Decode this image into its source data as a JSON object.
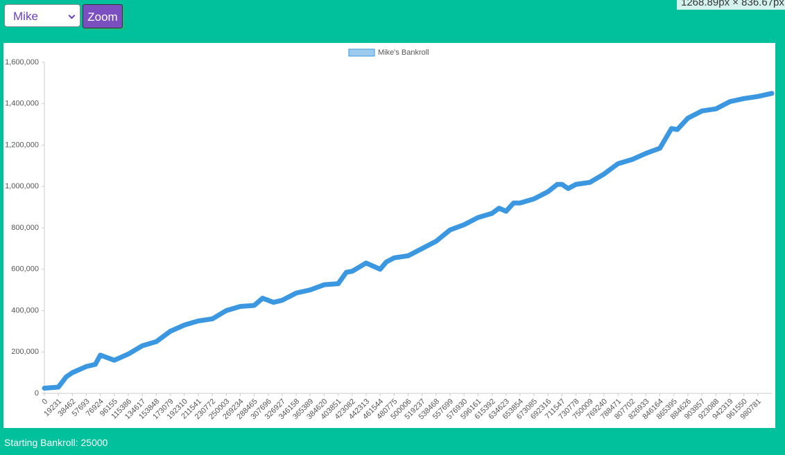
{
  "controls": {
    "player": "Mike",
    "zoom": "Zoom"
  },
  "badge": "1268.89px × 836.67px",
  "footer": "Starting Bankroll: 25000",
  "chart_data": {
    "type": "line",
    "series": [
      {
        "name": "Mike's Bankroll",
        "color": "#3a97e0",
        "x": [
          0,
          19231,
          30000,
          38462,
          57693,
          70000,
          76924,
          96155,
          115386,
          134617,
          153848,
          173079,
          192310,
          211541,
          230772,
          250003,
          269234,
          288465,
          300000,
          315000,
          326927,
          346158,
          365389,
          384620,
          403851,
          415000,
          423082,
          442313,
          461544,
          470000,
          480775,
          500006,
          519237,
          538468,
          557699,
          576930,
          596161,
          615392,
          625000,
          634623,
          645000,
          653854,
          673085,
          692316,
          705000,
          711547,
          720000,
          730778,
          750009,
          769240,
          788471,
          807702,
          826933,
          846164,
          862000,
          870000,
          884626,
          903857,
          923088,
          942319,
          961550,
          980781,
          1000000
        ],
        "values": [
          25000,
          30000,
          80000,
          100000,
          130000,
          140000,
          185000,
          160000,
          190000,
          230000,
          250000,
          300000,
          330000,
          350000,
          360000,
          400000,
          420000,
          425000,
          460000,
          440000,
          450000,
          485000,
          500000,
          525000,
          530000,
          585000,
          590000,
          630000,
          600000,
          635000,
          655000,
          665000,
          700000,
          735000,
          790000,
          815000,
          850000,
          870000,
          895000,
          880000,
          920000,
          920000,
          940000,
          975000,
          1010000,
          1010000,
          990000,
          1010000,
          1020000,
          1060000,
          1110000,
          1130000,
          1160000,
          1185000,
          1280000,
          1275000,
          1330000,
          1365000,
          1375000,
          1410000,
          1425000,
          1435000,
          1450000
        ]
      }
    ],
    "xlim": [
      0,
      1000000
    ],
    "xticks": [
      0,
      19231,
      38462,
      57693,
      76924,
      96155,
      115386,
      134617,
      153848,
      173079,
      192310,
      211541,
      230772,
      250003,
      269234,
      288465,
      307696,
      326927,
      346158,
      365389,
      384620,
      403851,
      423082,
      442313,
      461544,
      480775,
      500006,
      519237,
      538468,
      557699,
      576930,
      596161,
      615392,
      634623,
      653854,
      673085,
      692316,
      711547,
      730778,
      750009,
      769240,
      788471,
      807702,
      826933,
      846164,
      865395,
      884626,
      903857,
      923088,
      942319,
      961550,
      980781
    ],
    "ylim": [
      0,
      1600000
    ],
    "yticks": [
      0,
      {
        "value": 200000,
        "label": "200,000"
      },
      {
        "value": 400000,
        "label": "400,000"
      },
      {
        "value": 600000,
        "label": "600,000"
      },
      {
        "value": 800000,
        "label": "800,000"
      },
      {
        "value": 1000000,
        "label": "1,000,000"
      },
      {
        "value": 1200000,
        "label": "1,200,000"
      },
      {
        "value": 1400000,
        "label": "1,400,000"
      },
      {
        "value": 1600000,
        "label": "1,600,000"
      }
    ]
  }
}
